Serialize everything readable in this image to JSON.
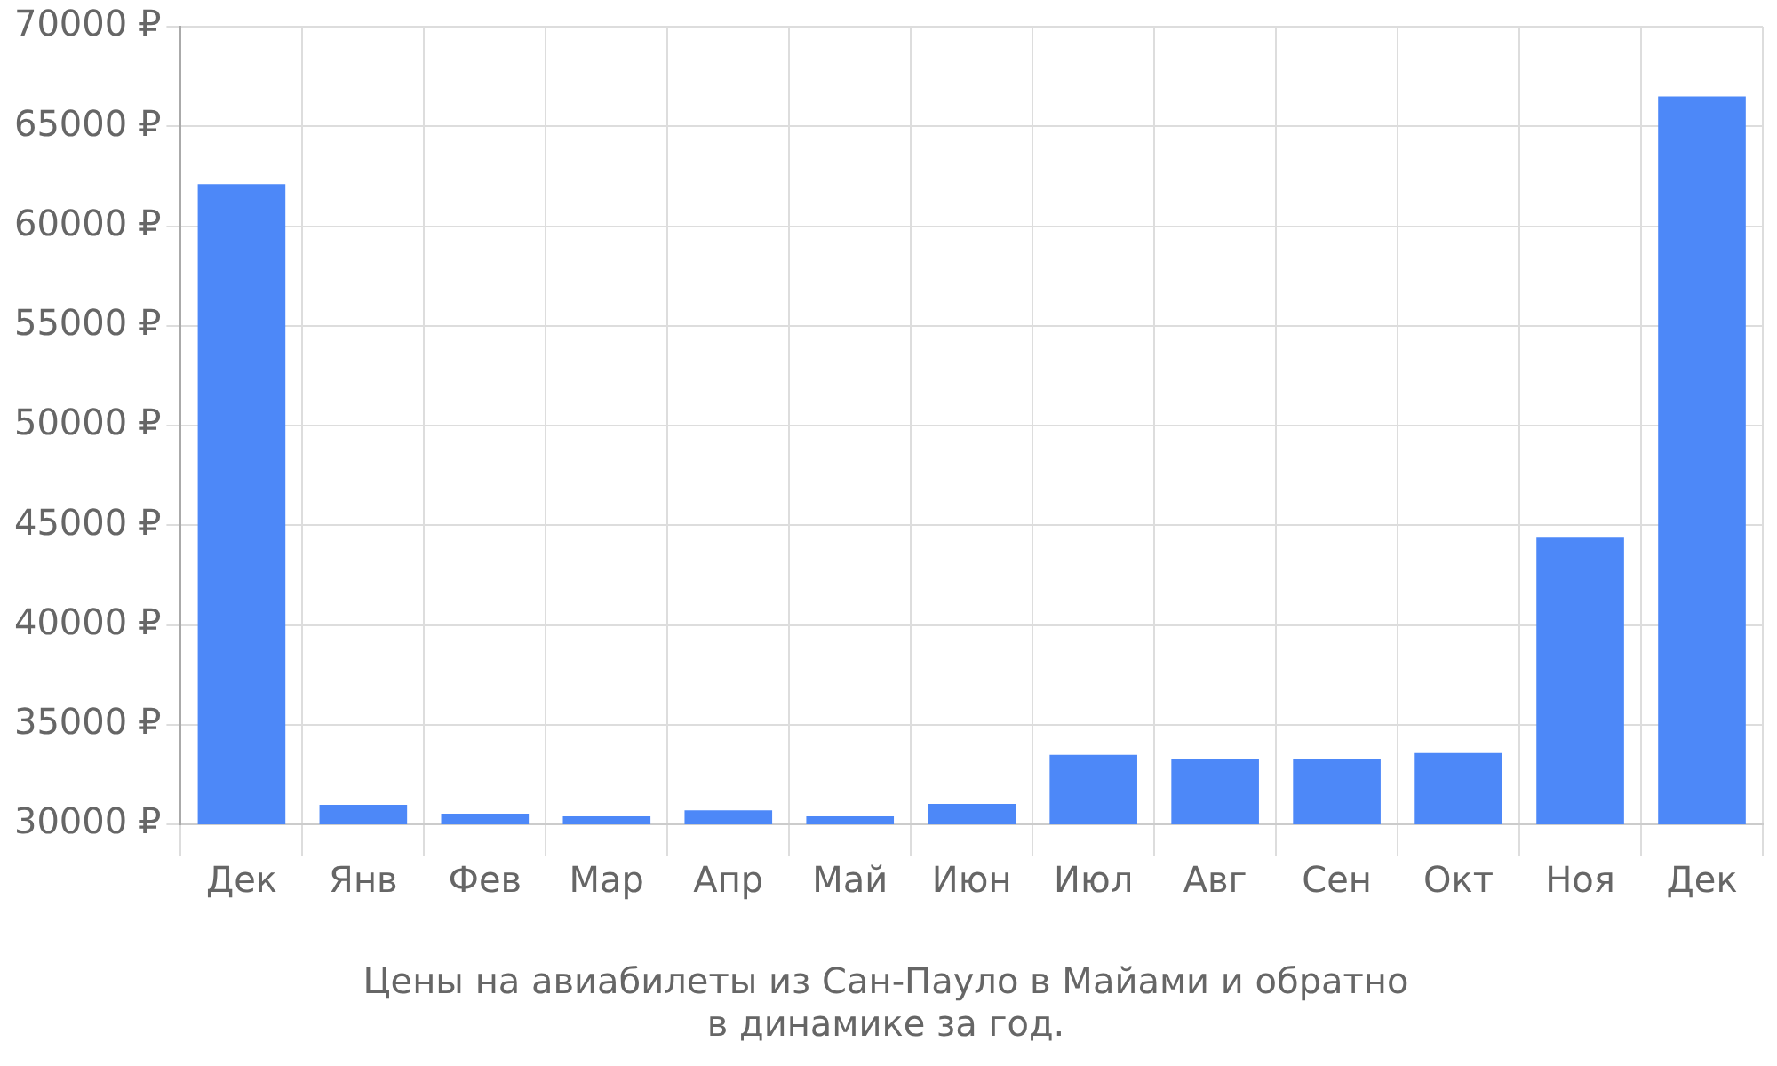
{
  "chart_data": {
    "type": "bar",
    "title": "Цены на авиабилеты из Сан-Пауло в Майами и обратно\nв динамике за год.",
    "categories": [
      "Дек",
      "Янв",
      "Фев",
      "Мар",
      "Апр",
      "Май",
      "Июн",
      "Июл",
      "Авг",
      "Сен",
      "Окт",
      "Ноя",
      "Дек"
    ],
    "values": [
      62100,
      30980,
      30540,
      30400,
      30700,
      30400,
      31030,
      33480,
      33300,
      33300,
      33570,
      44380,
      66500
    ],
    "color": "#4d88f8",
    "ylim": [
      30000,
      70000
    ],
    "yticks": [
      {
        "value": 30000,
        "label": "30000 ₽"
      },
      {
        "value": 35000,
        "label": "35000 ₽"
      },
      {
        "value": 40000,
        "label": "40000 ₽"
      },
      {
        "value": 45000,
        "label": "45000 ₽"
      },
      {
        "value": 50000,
        "label": "50000 ₽"
      },
      {
        "value": 55000,
        "label": "55000 ₽"
      },
      {
        "value": 60000,
        "label": "60000 ₽"
      },
      {
        "value": 65000,
        "label": "65000 ₽"
      },
      {
        "value": 70000,
        "label": "70000 ₽"
      }
    ],
    "grid": true
  }
}
